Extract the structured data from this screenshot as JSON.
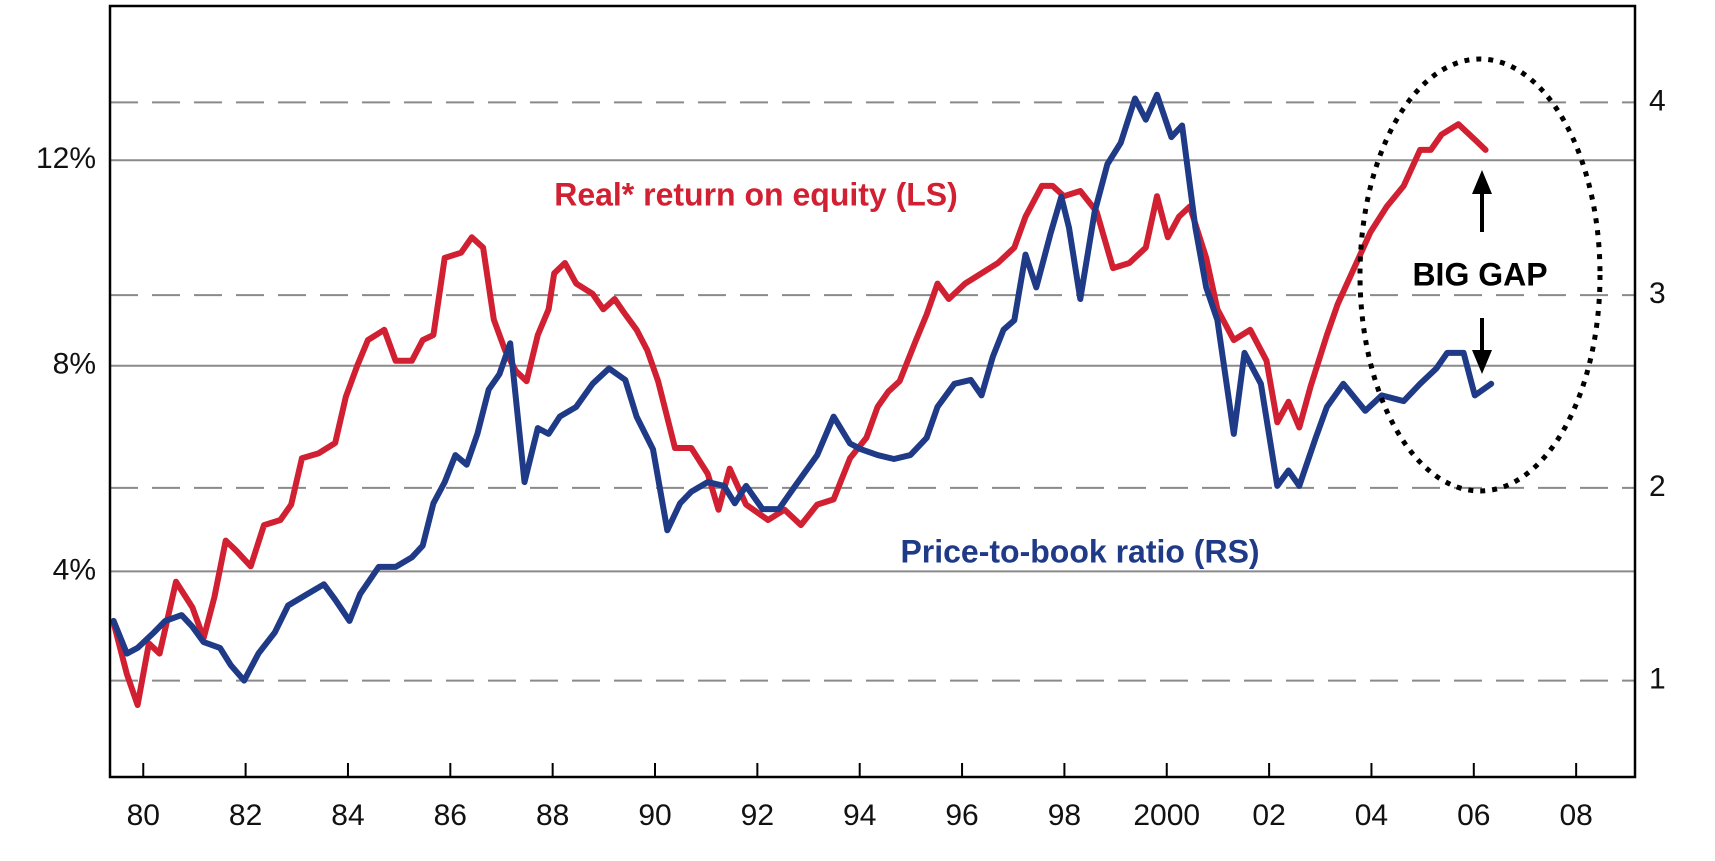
{
  "chart_data": {
    "type": "line",
    "annotations": [
      {
        "text": "Real* return on equity (LS)"
      },
      {
        "text": "Price-to-book ratio (RS)"
      },
      {
        "text": "BIG GAP"
      }
    ],
    "xlim": [
      1979.35,
      2009.15
    ],
    "xticks": [
      {
        "value": 1980,
        "label": "80"
      },
      {
        "value": 1982,
        "label": "82"
      },
      {
        "value": 1984,
        "label": "84"
      },
      {
        "value": 1986,
        "label": "86"
      },
      {
        "value": 1988,
        "label": "88"
      },
      {
        "value": 1990,
        "label": "90"
      },
      {
        "value": 1992,
        "label": "92"
      },
      {
        "value": 1994,
        "label": "94"
      },
      {
        "value": 1996,
        "label": "96"
      },
      {
        "value": 1998,
        "label": "98"
      },
      2000,
      {
        "value": 2002,
        "label": "02"
      },
      {
        "value": 2004,
        "label": "04"
      },
      {
        "value": 2006,
        "label": "06"
      },
      {
        "value": 2008,
        "label": "08"
      }
    ],
    "ylim": [
      0,
      15
    ],
    "yticks": [
      {
        "value": 4,
        "label": "4%"
      },
      {
        "value": 8,
        "label": "8%"
      },
      {
        "value": 12,
        "label": "12%"
      }
    ],
    "y2lim": [
      0.5,
      4.5
    ],
    "y2ticks": [
      1,
      2,
      3,
      4
    ],
    "grid": true,
    "series": [
      {
        "name": "Real* return on equity (LS)",
        "color": "#d12031",
        "x": [
          1979.42,
          1979.68,
          1979.89,
          1980.11,
          1980.32,
          1980.64,
          1980.96,
          1981.18,
          1981.39,
          1981.61,
          1981.82,
          1982.1,
          1982.36,
          1982.68,
          1982.89,
          1983.1,
          1983.43,
          1983.75,
          1983.96,
          1984.18,
          1984.39,
          1984.71,
          1984.93,
          1985.25,
          1985.46,
          1985.67,
          1985.89,
          1986.21,
          1986.42,
          1986.64,
          1986.85,
          1987.07,
          1987.28,
          1987.49,
          1987.71,
          1987.92,
          1988.03,
          1988.24,
          1988.46,
          1988.78,
          1988.99,
          1989.21,
          1989.42,
          1989.64,
          1989.85,
          1990.06,
          1990.39,
          1990.71,
          1991.03,
          1991.24,
          1991.46,
          1991.78,
          1992.21,
          1992.53,
          1992.85,
          1993.17,
          1993.49,
          1993.81,
          1994.13,
          1994.35,
          1994.56,
          1994.78,
          1995.1,
          1995.31,
          1995.52,
          1995.74,
          1996.06,
          1996.38,
          1996.7,
          1997.02,
          1997.24,
          1997.56,
          1997.77,
          1997.99,
          1998.31,
          1998.63,
          1998.95,
          1999.27,
          1999.59,
          1999.81,
          2000.02,
          2000.24,
          2000.45,
          2000.77,
          2000.99,
          2001.31,
          2001.63,
          2001.95,
          2002.16,
          2002.38,
          2002.59,
          2002.81,
          2003.13,
          2003.34,
          2003.66,
          2003.98,
          2004.3,
          2004.63,
          2004.95,
          2005.16,
          2005.37,
          2005.7,
          2006.02,
          2006.23
        ],
        "values": [
          3.0,
          2.0,
          1.4,
          2.6,
          2.4,
          3.8,
          3.3,
          2.7,
          3.5,
          4.6,
          4.4,
          4.1,
          4.9,
          5.0,
          5.3,
          6.2,
          6.3,
          6.5,
          7.4,
          8.0,
          8.5,
          8.7,
          8.1,
          8.1,
          8.5,
          8.6,
          10.1,
          10.2,
          10.5,
          10.3,
          8.9,
          8.3,
          7.9,
          7.7,
          8.6,
          9.1,
          9.8,
          10.0,
          9.6,
          9.4,
          9.1,
          9.3,
          9.0,
          8.7,
          8.3,
          7.7,
          6.4,
          6.4,
          5.9,
          5.2,
          6.0,
          5.3,
          5.0,
          5.2,
          4.9,
          5.3,
          5.4,
          6.2,
          6.6,
          7.2,
          7.5,
          7.7,
          8.5,
          9.0,
          9.6,
          9.3,
          9.6,
          9.8,
          10.0,
          10.3,
          10.9,
          11.5,
          11.5,
          11.3,
          11.4,
          11.0,
          9.9,
          10.0,
          10.3,
          11.3,
          10.5,
          10.9,
          11.1,
          10.1,
          9.1,
          8.5,
          8.7,
          8.1,
          6.9,
          7.3,
          6.8,
          7.6,
          8.6,
          9.2,
          9.9,
          10.6,
          11.1,
          11.5,
          12.2,
          12.2,
          12.5,
          12.7,
          12.4,
          12.2
        ]
      },
      {
        "name": "Price-to-book ratio (RS)",
        "color": "#1f3a87",
        "axis": "y2",
        "x": [
          1979.42,
          1979.68,
          1979.89,
          1980.21,
          1980.43,
          1980.75,
          1980.96,
          1981.18,
          1981.5,
          1981.71,
          1981.97,
          1982.25,
          1982.57,
          1982.83,
          1983.21,
          1983.53,
          1983.75,
          1984.03,
          1984.24,
          1984.6,
          1984.93,
          1985.25,
          1985.46,
          1985.67,
          1985.89,
          1986.1,
          1986.32,
          1986.53,
          1986.75,
          1986.96,
          1987.17,
          1987.45,
          1987.71,
          1987.92,
          1988.14,
          1988.46,
          1988.78,
          1989.1,
          1989.42,
          1989.64,
          1989.96,
          1990.24,
          1990.49,
          1990.71,
          1991.03,
          1991.35,
          1991.56,
          1991.78,
          1992.1,
          1992.42,
          1992.74,
          1993.17,
          1993.49,
          1993.81,
          1994.03,
          1994.35,
          1994.67,
          1994.99,
          1995.31,
          1995.52,
          1995.85,
          1996.17,
          1996.38,
          1996.6,
          1996.81,
          1997.02,
          1997.24,
          1997.45,
          1997.73,
          1997.94,
          1998.09,
          1998.31,
          1998.59,
          1998.84,
          1999.1,
          1999.38,
          1999.59,
          1999.81,
          2000.09,
          2000.3,
          2000.56,
          2000.77,
          2000.99,
          2001.31,
          2001.52,
          2001.84,
          2002.16,
          2002.38,
          2002.59,
          2002.91,
          2003.13,
          2003.45,
          2003.88,
          2004.2,
          2004.63,
          2004.95,
          2005.27,
          2005.48,
          2005.8,
          2006.02,
          2006.34
        ],
        "values": [
          1.31,
          1.14,
          1.17,
          1.25,
          1.31,
          1.34,
          1.28,
          1.2,
          1.17,
          1.08,
          1.0,
          1.14,
          1.25,
          1.39,
          1.45,
          1.5,
          1.42,
          1.31,
          1.45,
          1.59,
          1.59,
          1.64,
          1.7,
          1.92,
          2.03,
          2.17,
          2.12,
          2.28,
          2.51,
          2.59,
          2.75,
          2.03,
          2.31,
          2.28,
          2.37,
          2.42,
          2.54,
          2.62,
          2.56,
          2.37,
          2.2,
          1.78,
          1.92,
          1.98,
          2.03,
          2.01,
          1.92,
          2.01,
          1.89,
          1.89,
          2.01,
          2.17,
          2.37,
          2.23,
          2.2,
          2.17,
          2.15,
          2.17,
          2.26,
          2.42,
          2.54,
          2.56,
          2.48,
          2.68,
          2.82,
          2.87,
          3.21,
          3.04,
          3.32,
          3.51,
          3.35,
          2.98,
          3.43,
          3.68,
          3.79,
          4.02,
          3.91,
          4.04,
          3.82,
          3.88,
          3.35,
          3.04,
          2.87,
          2.28,
          2.7,
          2.54,
          2.01,
          2.09,
          2.01,
          2.26,
          2.42,
          2.54,
          2.4,
          2.48,
          2.45,
          2.54,
          2.62,
          2.7,
          2.7,
          2.48,
          2.54
        ]
      }
    ]
  }
}
